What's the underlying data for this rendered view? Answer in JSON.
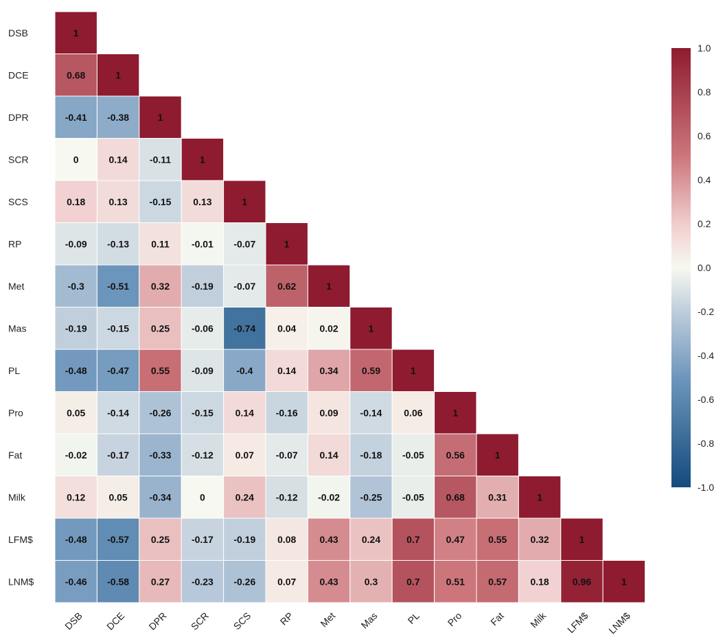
{
  "chart_data": {
    "type": "heatmap",
    "title": "",
    "xlabel": "",
    "ylabel": "",
    "labels": [
      "DSB",
      "DCE",
      "DPR",
      "SCR",
      "SCS",
      "RP",
      "Met",
      "Mas",
      "PL",
      "Pro",
      "Fat",
      "Milk",
      "LFM$",
      "LNM$"
    ],
    "matrix": [
      [
        1
      ],
      [
        0.68,
        1
      ],
      [
        -0.41,
        -0.38,
        1
      ],
      [
        0,
        0.14,
        -0.11,
        1
      ],
      [
        0.18,
        0.13,
        -0.15,
        0.13,
        1
      ],
      [
        -0.09,
        -0.13,
        0.11,
        -0.01,
        -0.07,
        1
      ],
      [
        -0.3,
        -0.51,
        0.32,
        -0.19,
        -0.07,
        0.62,
        1
      ],
      [
        -0.19,
        -0.15,
        0.25,
        -0.06,
        -0.74,
        0.04,
        0.02,
        1
      ],
      [
        -0.48,
        -0.47,
        0.55,
        -0.09,
        -0.4,
        0.14,
        0.34,
        0.59,
        1
      ],
      [
        0.05,
        -0.14,
        -0.26,
        -0.15,
        0.14,
        -0.16,
        0.09,
        -0.14,
        0.06,
        1
      ],
      [
        -0.02,
        -0.17,
        -0.33,
        -0.12,
        0.07,
        -0.07,
        0.14,
        -0.18,
        -0.05,
        0.56,
        1
      ],
      [
        0.12,
        0.05,
        -0.34,
        0,
        0.24,
        -0.12,
        -0.02,
        -0.25,
        -0.05,
        0.68,
        0.31,
        1
      ],
      [
        -0.48,
        -0.57,
        0.25,
        -0.17,
        -0.19,
        0.08,
        0.43,
        0.24,
        0.7,
        0.47,
        0.55,
        0.32,
        1
      ],
      [
        -0.46,
        -0.58,
        0.27,
        -0.23,
        -0.26,
        0.07,
        0.43,
        0.3,
        0.7,
        0.51,
        0.57,
        0.18,
        0.96,
        1
      ]
    ],
    "colorbar": {
      "range": [
        -1.0,
        1.0
      ],
      "ticks": [
        "1.0",
        "0.8",
        "0.6",
        "0.4",
        "0.2",
        "0.0",
        "-0.2",
        "-0.4",
        "-0.6",
        "-0.8",
        "-1.0"
      ],
      "colormap": "RdBu_r",
      "colors": {
        "low": "#134b7d",
        "mid": "#f7f9f0",
        "high": "#8e1b2f"
      }
    },
    "legend": "right",
    "grid": false
  }
}
